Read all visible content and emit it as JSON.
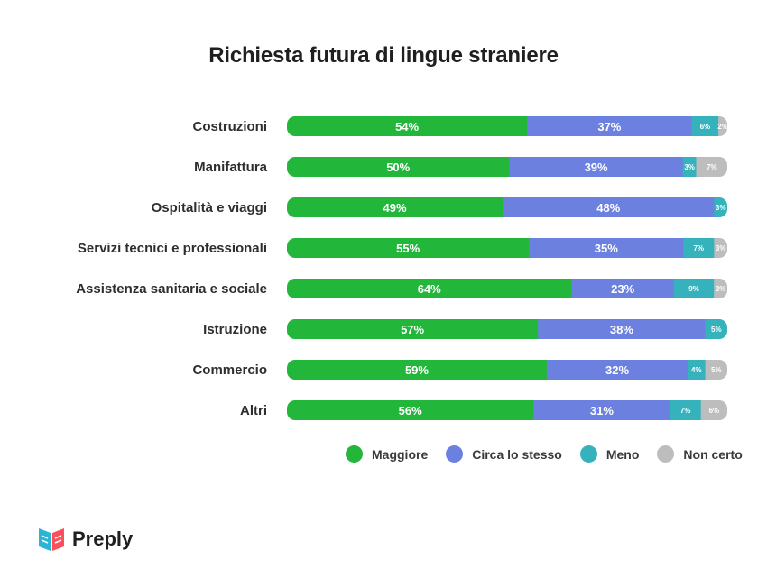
{
  "chart_data": {
    "type": "bar",
    "orientation": "horizontal",
    "stacked": true,
    "title": "Richiesta futura di lingue straniere",
    "categories": [
      "Costruzioni",
      "Manifattura",
      "Ospitalità e viaggi",
      "Servizi tecnici e professionali",
      "Assistenza sanitaria e sociale",
      "Istruzione",
      "Commercio",
      "Altri"
    ],
    "series": [
      {
        "name": "Maggiore",
        "color": "#22b73a",
        "values": [
          54,
          50,
          49,
          55,
          64,
          57,
          59,
          56
        ]
      },
      {
        "name": "Circa lo stesso",
        "color": "#6c81df",
        "values": [
          37,
          39,
          48,
          35,
          23,
          38,
          32,
          31
        ]
      },
      {
        "name": "Meno",
        "color": "#36b2bd",
        "values": [
          6,
          3,
          3,
          7,
          9,
          5,
          4,
          7
        ]
      },
      {
        "name": "Non certo",
        "color": "#bdbdbd",
        "values": [
          2,
          7,
          0,
          3,
          3,
          0,
          5,
          6
        ]
      }
    ],
    "value_suffix": "%",
    "legend_position": "bottom-right",
    "grid": false
  },
  "brand": {
    "name": "Preply",
    "logo_icon": "preply-book-icon",
    "logo_colors": [
      "#2bb5d4",
      "#ff4f5a"
    ]
  }
}
